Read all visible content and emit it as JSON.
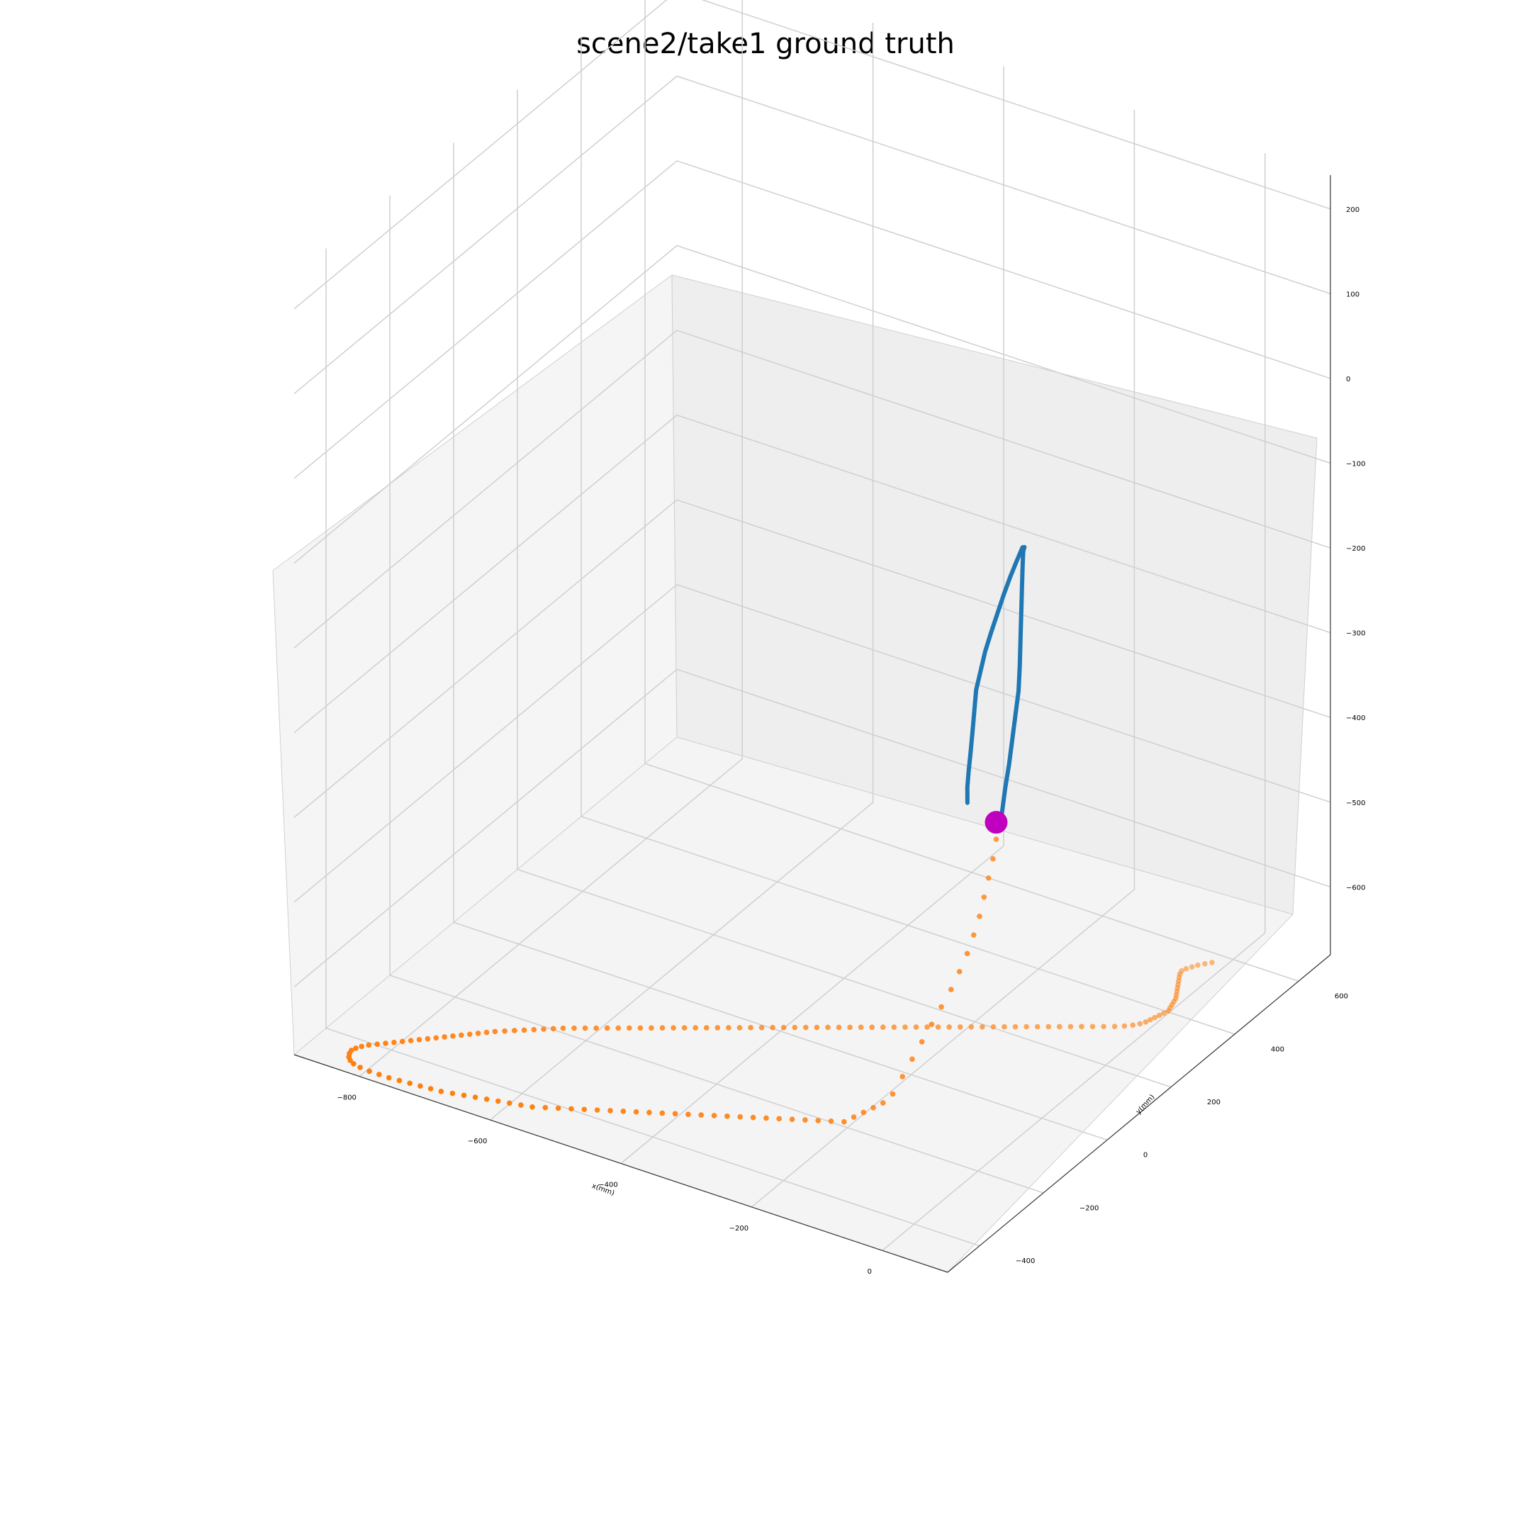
{
  "chart_data": {
    "type": "scatter",
    "projection": "3d",
    "title": "scene2/take1 ground truth",
    "xlabel": "x(mm)",
    "ylabel": "y(mm)",
    "zlabel": "",
    "x_ticks": [
      "−800",
      "−600",
      "−400",
      "−200",
      "0"
    ],
    "y_ticks": [
      "−400",
      "−200",
      "0",
      "200",
      "400",
      "600"
    ],
    "z_ticks": [
      "−600",
      "−500",
      "−400",
      "−300",
      "−200",
      "−100",
      "0",
      "100",
      "200"
    ],
    "grid": true,
    "colors": {
      "ground_trajectory": "#ff7f0e",
      "upper_trajectory": "#1f77b4",
      "start_marker": "#bf00bf",
      "pane": "#f2f2f2",
      "grid": "#cccccc"
    },
    "series": [
      {
        "type": "line",
        "color": "#1f77b4",
        "x": [
          -60,
          -58,
          -56,
          -55,
          -56,
          -57,
          -58,
          -62,
          -66,
          -70,
          -74,
          -78,
          -82,
          -86,
          -88,
          -92,
          -96,
          -100,
          -104,
          -108,
          -112,
          -116,
          -118,
          -120,
          -118,
          -116,
          -114,
          -112,
          -110,
          -106
        ],
        "y": [
          -10,
          -5,
          0,
          10,
          22,
          34,
          46,
          58,
          68,
          78,
          88,
          98,
          108,
          118,
          126,
          128,
          118,
          106,
          94,
          82,
          70,
          60,
          50,
          40,
          30,
          20,
          10,
          0,
          -8,
          -16
        ],
        "z": [
          -350,
          -330,
          -305,
          -280,
          -255,
          -230,
          -205,
          -180,
          -160,
          -140,
          -120,
          -100,
          -82,
          -70,
          -68,
          -70,
          -84,
          -100,
          -118,
          -138,
          -158,
          -178,
          -198,
          -218,
          -240,
          -262,
          -282,
          -300,
          -315,
          -330
        ]
      },
      {
        "type": "scatter",
        "color": "#ff7f0e",
        "x": [
          -60,
          -60,
          -62,
          -64,
          -66,
          -70,
          -75,
          -82,
          -90,
          -100,
          -110,
          -120,
          -130,
          -140,
          -150,
          -160,
          -170,
          -180,
          -190,
          -200,
          -215,
          -230,
          -245,
          -260,
          -275,
          -290,
          -305,
          -320,
          -335,
          -350,
          -365,
          -380,
          -395,
          -410,
          -425,
          -440,
          -455,
          -470,
          -485,
          -500,
          -515,
          -530,
          -545,
          -560,
          -575,
          -590,
          -605,
          -620,
          -635,
          -650,
          -665,
          -680,
          -695,
          -710,
          -725,
          -740,
          -755,
          -770,
          -785,
          -800,
          -812,
          -820,
          -826,
          -830,
          -832,
          -830,
          -826,
          -820,
          -812,
          -804,
          -796,
          -788,
          -780,
          -772,
          -764,
          -756,
          -748,
          -740,
          -732,
          -724,
          -716,
          -708,
          -700,
          -690,
          -680,
          -670,
          -660,
          -650,
          -640,
          -630,
          -618,
          -606,
          -594,
          -582,
          -570,
          -558,
          -546,
          -534,
          -522,
          -510,
          -498,
          -486,
          -474,
          -462,
          -450,
          -438,
          -426,
          -414,
          -402,
          -390,
          -378,
          -366,
          -354,
          -342,
          -330,
          -318,
          -306,
          -294,
          -282,
          -270,
          -258,
          -246,
          -234,
          -222,
          -210,
          -198,
          -186,
          -174,
          -162,
          -150,
          -138,
          -126,
          -114,
          -102,
          -90,
          -78,
          -66,
          -54,
          -42,
          -30,
          -20,
          -12,
          -6,
          -2,
          0,
          2,
          4,
          6,
          8,
          6,
          4,
          2,
          0,
          -4,
          -8,
          -12,
          -16,
          -20,
          -24,
          -28,
          -30,
          -28,
          -24,
          -20,
          -14,
          -8
        ],
        "y": [
          -20,
          -30,
          -40,
          -50,
          -60,
          -70,
          -80,
          -90,
          -100,
          -110,
          -120,
          -130,
          -140,
          -150,
          -160,
          -170,
          -180,
          -190,
          -200,
          -210,
          -220,
          -230,
          -240,
          -250,
          -260,
          -270,
          -280,
          -290,
          -300,
          -310,
          -320,
          -330,
          -340,
          -350,
          -360,
          -370,
          -380,
          -390,
          -400,
          -410,
          -420,
          -430,
          -440,
          -450,
          -455,
          -460,
          -465,
          -470,
          -475,
          -480,
          -485,
          -490,
          -492,
          -494,
          -496,
          -498,
          -500,
          -500,
          -500,
          -498,
          -494,
          -488,
          -480,
          -470,
          -460,
          -450,
          -440,
          -430,
          -420,
          -410,
          -400,
          -390,
          -380,
          -370,
          -360,
          -350,
          -340,
          -330,
          -320,
          -310,
          -300,
          -290,
          -280,
          -270,
          -260,
          -250,
          -240,
          -230,
          -220,
          -210,
          -200,
          -190,
          -180,
          -170,
          -160,
          -150,
          -140,
          -130,
          -120,
          -110,
          -100,
          -90,
          -80,
          -70,
          -60,
          -50,
          -40,
          -30,
          -20,
          -10,
          0,
          10,
          20,
          30,
          40,
          50,
          60,
          70,
          80,
          90,
          100,
          110,
          120,
          130,
          140,
          150,
          160,
          170,
          180,
          190,
          200,
          210,
          220,
          230,
          240,
          250,
          260,
          270,
          280,
          290,
          300,
          310,
          320,
          330,
          340,
          350,
          360,
          370,
          380,
          390,
          400,
          410,
          420,
          430,
          440,
          450,
          460,
          470,
          480,
          490,
          500,
          510,
          520,
          530,
          540,
          550
        ],
        "z": [
          -360,
          -380,
          -400,
          -420,
          -440,
          -460,
          -480,
          -500,
          -520,
          -540,
          -560,
          -580,
          -600,
          -620,
          -640,
          -650,
          -655,
          -660,
          -665,
          -670,
          -670,
          -670,
          -670,
          -670,
          -670,
          -670,
          -670,
          -670,
          -670,
          -670,
          -670,
          -670,
          -670,
          -670,
          -670,
          -670,
          -670,
          -670,
          -670,
          -670,
          -670,
          -670,
          -670,
          -670,
          -670,
          -670,
          -670,
          -670,
          -670,
          -670,
          -670,
          -670,
          -670,
          -670,
          -670,
          -670,
          -670,
          -670,
          -670,
          -670,
          -670,
          -670,
          -670,
          -670,
          -670,
          -670,
          -670,
          -670,
          -670,
          -670,
          -670,
          -670,
          -670,
          -670,
          -670,
          -670,
          -670,
          -670,
          -670,
          -670,
          -670,
          -670,
          -670,
          -670,
          -670,
          -670,
          -670,
          -670,
          -670,
          -670,
          -670,
          -670,
          -670,
          -670,
          -670,
          -670,
          -670,
          -670,
          -670,
          -670,
          -670,
          -670,
          -670,
          -670,
          -670,
          -670,
          -670,
          -670,
          -670,
          -670,
          -670,
          -670,
          -670,
          -670,
          -670,
          -670,
          -670,
          -670,
          -670,
          -670,
          -670,
          -670,
          -670,
          -670,
          -670,
          -670,
          -670,
          -670,
          -670,
          -670,
          -670,
          -670,
          -670,
          -670,
          -670,
          -670,
          -670,
          -670,
          -670,
          -670,
          -670,
          -670,
          -670,
          -670,
          -670,
          -670,
          -670,
          -670,
          -670,
          -670,
          -670,
          -670,
          -670,
          -670,
          -670,
          -670,
          -670,
          -670,
          -670,
          -670,
          -670,
          -670,
          -670,
          -670,
          -670,
          -670,
          -670
        ]
      },
      {
        "type": "marker",
        "color": "#bf00bf",
        "x": [
          -60
        ],
        "y": [
          -20
        ],
        "z": [
          -340
        ]
      }
    ]
  }
}
